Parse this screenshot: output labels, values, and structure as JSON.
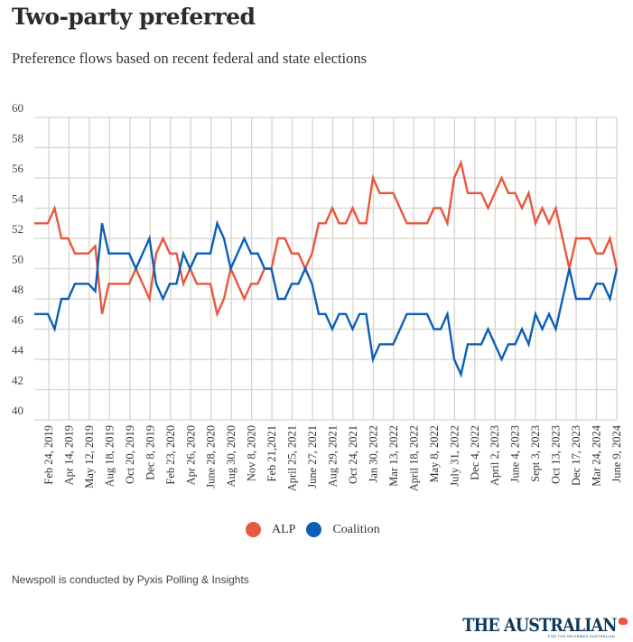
{
  "header": {
    "title": "Two-party preferred",
    "subtitle": "Preference flows based on recent federal and state elections"
  },
  "legend": [
    {
      "label": "ALP",
      "color": "#e8573f"
    },
    {
      "label": "Coalition",
      "color": "#0c5fb8"
    }
  ],
  "footer": {
    "note": "Newspoll is conducted by Pyxis Polling & Insights",
    "logo": "THE AUSTRALIAN",
    "logo_tagline": "FOR THE INFORMED AUSTRALIAN"
  },
  "chart_data": {
    "type": "line",
    "title": "Two-party preferred",
    "subtitle": "Preference flows based on recent federal and state elections",
    "xlabel": "",
    "ylabel": "",
    "ylim": [
      40,
      60
    ],
    "yticks": [
      40,
      42,
      44,
      46,
      48,
      50,
      52,
      54,
      56,
      58,
      60
    ],
    "grid": true,
    "legend_position": "bottom-center",
    "xtick_labels": [
      "Feb 24, 2019",
      "Apr 14, 2019",
      "May 12, 2019",
      "Aug 18, 2019",
      "Oct 20, 2019",
      "Dec 8, 2019",
      "Feb 23, 2020",
      "Apr 26, 2020",
      "June 28, 2020",
      "Aug 30, 2020",
      "Nov 8, 2020",
      "Feb 21,2021",
      "April 25, 2021",
      "June 27, 2021",
      "Aug 29, 2021",
      "Oct 24, 2021",
      "Jan 30, 2022",
      "Mar 13, 2022",
      "April 18, 2022",
      "May 8, 2022",
      "July 31, 2022",
      "Dec 4, 2022",
      "April 2, 2023",
      "June 4, 2023",
      "Sept 3, 2023",
      "Oct 13, 2023",
      "Dec 17, 2023",
      "Mar 24, 2024",
      "June 9, 2024"
    ],
    "series": [
      {
        "name": "ALP",
        "color": "#e8573f",
        "values": [
          53,
          53,
          53,
          54,
          52,
          52,
          51,
          51,
          51,
          51.5,
          47,
          49,
          49,
          49,
          49,
          50,
          49,
          48,
          51,
          52,
          51,
          51,
          49,
          50,
          49,
          49,
          49,
          47,
          48,
          50,
          49,
          48,
          49,
          49,
          50,
          50,
          52,
          52,
          51,
          51,
          50,
          51,
          53,
          53,
          54,
          53,
          53,
          54,
          53,
          53,
          56,
          55,
          55,
          55,
          54,
          53,
          53,
          53,
          53,
          54,
          54,
          53,
          56,
          57,
          55,
          55,
          55,
          54,
          55,
          56,
          55,
          55,
          54,
          55,
          53,
          54,
          53,
          54,
          52,
          50,
          52,
          52,
          52,
          51,
          51,
          52,
          50
        ]
      },
      {
        "name": "Coalition",
        "color": "#0c5fb8",
        "values": [
          47,
          47,
          47,
          46,
          48,
          48,
          49,
          49,
          49,
          48.5,
          53,
          51,
          51,
          51,
          51,
          50,
          51,
          52,
          49,
          48,
          49,
          49,
          51,
          50,
          51,
          51,
          51,
          53,
          52,
          50,
          51,
          52,
          51,
          51,
          50,
          50,
          48,
          48,
          49,
          49,
          50,
          49,
          47,
          47,
          46,
          47,
          47,
          46,
          47,
          47,
          44,
          45,
          45,
          45,
          46,
          47,
          47,
          47,
          47,
          46,
          46,
          47,
          44,
          43,
          45,
          45,
          45,
          46,
          45,
          44,
          45,
          45,
          46,
          45,
          47,
          46,
          47,
          46,
          48,
          50,
          48,
          48,
          48,
          49,
          49,
          48,
          50
        ]
      }
    ]
  }
}
